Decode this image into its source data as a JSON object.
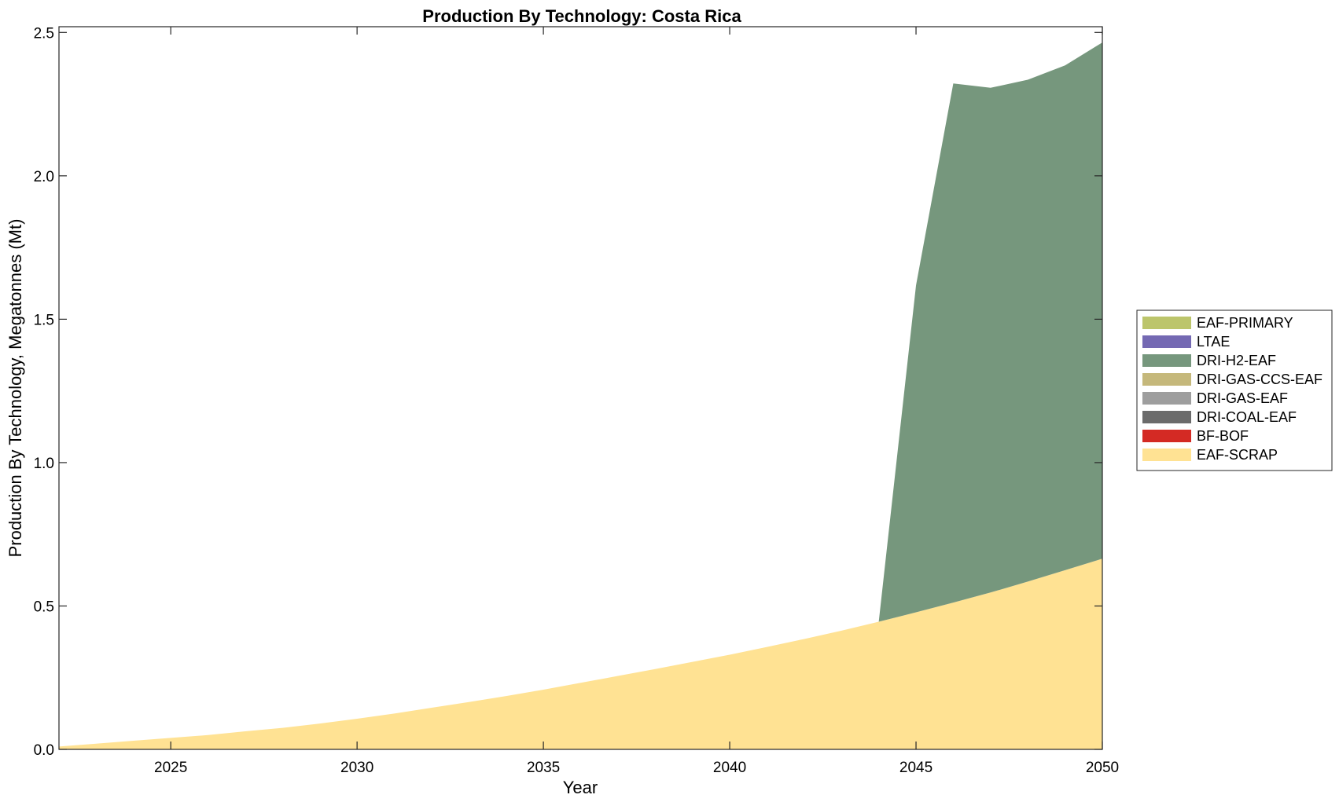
{
  "chart_data": {
    "type": "area",
    "title": "Production By Technology: Costa Rica",
    "xlabel": "Year",
    "ylabel": "Production By Technology, Megatonnes (Mt)",
    "xlim": [
      2022,
      2050
    ],
    "ylim": [
      0,
      2.52
    ],
    "xticks": [
      2025,
      2030,
      2035,
      2040,
      2045,
      2050
    ],
    "yticks": [
      "0.0",
      "0.5",
      "1.0",
      "1.5",
      "2.0",
      "2.5"
    ],
    "grid": false,
    "legend_position": "right",
    "x": [
      2022,
      2023,
      2024,
      2025,
      2026,
      2027,
      2028,
      2029,
      2030,
      2031,
      2032,
      2033,
      2034,
      2035,
      2036,
      2037,
      2038,
      2039,
      2040,
      2041,
      2042,
      2043,
      2044,
      2045,
      2046,
      2047,
      2048,
      2049,
      2050
    ],
    "legend": [
      "EAF-PRIMARY",
      "LTAE",
      "DRI-H2-EAF",
      "DRI-GAS-CCS-EAF",
      "DRI-GAS-EAF",
      "DRI-COAL-EAF",
      "BF-BOF",
      "EAF-SCRAP"
    ],
    "series": [
      {
        "name": "EAF-SCRAP",
        "color": "#FFE293",
        "values": [
          0.01,
          0.02,
          0.03,
          0.04,
          0.05,
          0.063,
          0.075,
          0.09,
          0.107,
          0.125,
          0.145,
          0.165,
          0.186,
          0.208,
          0.232,
          0.256,
          0.28,
          0.305,
          0.33,
          0.357,
          0.385,
          0.414,
          0.445,
          0.478,
          0.512,
          0.547,
          0.585,
          0.625,
          0.665
        ]
      },
      {
        "name": "BF-BOF",
        "color": "#D42A24",
        "values": [
          0,
          0,
          0,
          0,
          0,
          0,
          0,
          0,
          0,
          0,
          0,
          0,
          0,
          0,
          0,
          0,
          0,
          0,
          0,
          0,
          0,
          0,
          0,
          0,
          0,
          0,
          0,
          0,
          0
        ]
      },
      {
        "name": "DRI-COAL-EAF",
        "color": "#6B6B6B",
        "values": [
          0,
          0,
          0,
          0,
          0,
          0,
          0,
          0,
          0,
          0,
          0,
          0,
          0,
          0,
          0,
          0,
          0,
          0,
          0,
          0,
          0,
          0,
          0,
          0,
          0,
          0,
          0,
          0,
          0
        ]
      },
      {
        "name": "DRI-GAS-EAF",
        "color": "#9E9E9E",
        "values": [
          0,
          0,
          0,
          0,
          0,
          0,
          0,
          0,
          0,
          0,
          0,
          0,
          0,
          0,
          0,
          0,
          0,
          0,
          0,
          0,
          0,
          0,
          0,
          0,
          0,
          0,
          0,
          0,
          0
        ]
      },
      {
        "name": "DRI-GAS-CCS-EAF",
        "color": "#C5B87B",
        "values": [
          0,
          0,
          0,
          0,
          0,
          0,
          0,
          0,
          0,
          0,
          0,
          0,
          0,
          0,
          0,
          0,
          0,
          0,
          0,
          0,
          0,
          0,
          0,
          0,
          0,
          0,
          0,
          0,
          0
        ]
      },
      {
        "name": "DRI-H2-EAF",
        "color": "#76977D",
        "values": [
          0,
          0,
          0,
          0,
          0,
          0,
          0,
          0,
          0,
          0,
          0,
          0,
          0,
          0,
          0,
          0,
          0,
          0,
          0,
          0,
          0,
          0,
          0,
          1.14,
          1.81,
          1.76,
          1.75,
          1.76,
          1.8
        ]
      },
      {
        "name": "LTAE",
        "color": "#7469B3",
        "values": [
          0,
          0,
          0,
          0,
          0,
          0,
          0,
          0,
          0,
          0,
          0,
          0,
          0,
          0,
          0,
          0,
          0,
          0,
          0,
          0,
          0,
          0,
          0,
          0,
          0,
          0,
          0,
          0,
          0
        ]
      },
      {
        "name": "EAF-PRIMARY",
        "color": "#BCC56B",
        "values": [
          0,
          0,
          0,
          0,
          0,
          0,
          0,
          0,
          0,
          0,
          0,
          0,
          0,
          0,
          0,
          0,
          0,
          0,
          0,
          0,
          0,
          0,
          0,
          0,
          0,
          0,
          0,
          0,
          0
        ]
      }
    ]
  }
}
